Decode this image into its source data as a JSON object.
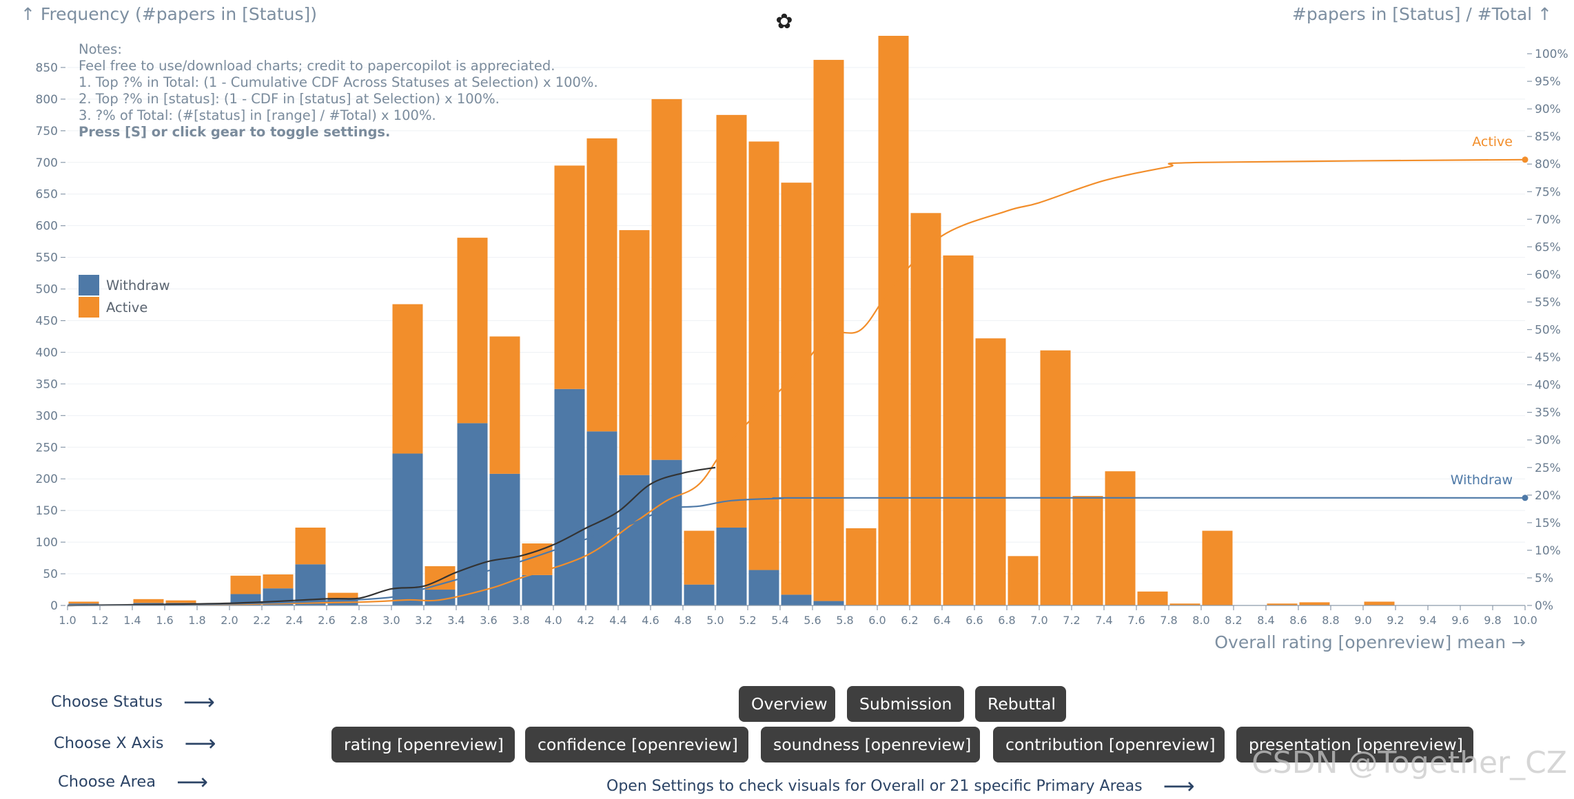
{
  "header": {
    "left_axis_title": "↑ Frequency (#papers in [Status])",
    "right_axis_title": "#papers in [Status] / #Total ↑",
    "x_axis_title": "Overall rating [openreview] mean →",
    "settings_icon": "gear-icon"
  },
  "notes": {
    "title": "Notes:",
    "lines": [
      "Feel free to use/download charts; credit to papercopilot is appreciated.",
      "1. Top ?% in Total: (1 - Cumulative CDF Across Statuses at Selection) x 100%.",
      "2. Top ?% in [status]: (1 - CDF in [status] at Selection) x 100%.",
      "3. ?% of Total: (#[status] in [range] / #Total) x 100%."
    ],
    "hint": "Press [S] or click gear to toggle settings."
  },
  "legend": {
    "withdraw": "Withdraw",
    "active": "Active"
  },
  "colors": {
    "withdraw": "#4e79a7",
    "active": "#f28e2b",
    "cdf_total": "#333333",
    "axis": "#8a9aab"
  },
  "controls": {
    "status_label": "Choose Status",
    "xaxis_label": "Choose X Axis",
    "area_label": "Choose Area",
    "status_buttons": [
      "Overview",
      "Submission",
      "Rebuttal"
    ],
    "xaxis_buttons": [
      "rating [openreview]",
      "confidence [openreview]",
      "soundness [openreview]",
      "contribution [openreview]",
      "presentation [openreview]"
    ],
    "area_note": "Open Settings to check visuals for Overall or 21 specific Primary Areas"
  },
  "watermark": "CSDN @Together_CZ",
  "chart_data": {
    "type": "bar",
    "stacked": true,
    "x_label": "Overall rating [openreview] mean",
    "y_label": "Frequency (#papers in [Status])",
    "y2_label": "#papers in [Status] / #Total",
    "xlim": [
      1.0,
      10.0
    ],
    "ylim": [
      0,
      900
    ],
    "y2lim": [
      0,
      100
    ],
    "x_ticks": [
      "1.0",
      "1.2",
      "1.4",
      "1.6",
      "1.8",
      "2.0",
      "2.2",
      "2.4",
      "2.6",
      "2.8",
      "3.0",
      "3.2",
      "3.4",
      "3.6",
      "3.8",
      "4.0",
      "4.2",
      "4.4",
      "4.6",
      "4.8",
      "5.0",
      "5.2",
      "5.4",
      "5.6",
      "5.8",
      "6.0",
      "6.2",
      "6.4",
      "6.6",
      "6.8",
      "7.0",
      "7.2",
      "7.4",
      "7.6",
      "7.8",
      "8.0",
      "8.2",
      "8.4",
      "8.6",
      "8.8",
      "9.0",
      "9.2",
      "9.4",
      "9.6",
      "9.8",
      "10.0"
    ],
    "y_ticks": [
      0,
      50,
      100,
      150,
      200,
      250,
      300,
      350,
      400,
      450,
      500,
      550,
      600,
      650,
      700,
      750,
      800,
      850
    ],
    "y2_ticks": [
      "0%",
      "5%",
      "10%",
      "15%",
      "20%",
      "25%",
      "30%",
      "35%",
      "40%",
      "45%",
      "50%",
      "55%",
      "60%",
      "65%",
      "70%",
      "75%",
      "80%",
      "85%",
      "90%",
      "95%",
      "100%"
    ],
    "bin_starts": [
      1.0,
      1.4,
      1.6,
      2.0,
      2.2,
      2.4,
      2.6,
      3.0,
      3.2,
      3.4,
      3.6,
      3.8,
      4.0,
      4.2,
      4.4,
      4.6,
      4.8,
      5.0,
      5.2,
      5.4,
      5.6,
      5.8,
      6.0,
      6.2,
      6.4,
      6.6,
      6.8,
      7.0,
      7.2,
      7.4,
      7.6,
      7.8,
      8.0,
      8.4,
      8.6,
      9.0
    ],
    "series": [
      {
        "name": "Withdraw",
        "values": [
          3,
          4,
          4,
          18,
          27,
          65,
          12,
          240,
          25,
          288,
          208,
          48,
          342,
          275,
          206,
          230,
          33,
          123,
          56,
          17,
          7,
          0,
          0,
          0,
          0,
          0,
          0,
          0,
          0,
          0,
          0,
          0,
          0,
          0,
          0,
          0
        ]
      },
      {
        "name": "Active",
        "values": [
          3,
          6,
          4,
          29,
          22,
          58,
          8,
          236,
          37,
          293,
          217,
          50,
          353,
          463,
          387,
          570,
          85,
          652,
          677,
          651,
          855,
          122,
          900,
          620,
          553,
          422,
          78,
          403,
          173,
          212,
          22,
          3,
          118,
          3,
          5,
          6
        ]
      }
    ],
    "cdf_lines": [
      {
        "name": "Active",
        "label_value": "80%",
        "x": [
          1.0,
          2.0,
          2.8,
          3.1,
          3.3,
          3.6,
          3.8,
          4.2,
          4.5,
          4.7,
          4.9,
          5.1,
          5.5,
          5.7,
          5.9,
          6.1,
          6.4,
          6.8,
          7.0,
          7.4,
          7.8,
          8.0,
          10.0
        ],
        "y": [
          0,
          0.2,
          0.6,
          1,
          1,
          3,
          5,
          9,
          15,
          19,
          22,
          30,
          42,
          49,
          50,
          58,
          67,
          71.5,
          73,
          77,
          79.5,
          80.3,
          80.8
        ]
      },
      {
        "name": "Withdraw",
        "label_value": "20%",
        "x": [
          1.0,
          2.0,
          2.6,
          3.0,
          3.2,
          3.5,
          3.8,
          4.2,
          4.5,
          4.7,
          4.9,
          5.1,
          5.4,
          5.8,
          10.0
        ],
        "y": [
          0,
          0.3,
          0.8,
          1.5,
          3,
          5.5,
          8,
          12,
          15,
          17.5,
          18,
          19,
          19.4,
          19.5,
          19.5
        ]
      },
      {
        "name": "Total",
        "label_value": "",
        "x": [
          1.0,
          2.0,
          2.6,
          2.8,
          3.0,
          3.2,
          3.4,
          3.6,
          3.8,
          4.0,
          4.2,
          4.4,
          4.6,
          4.8,
          5.0
        ],
        "y": [
          0,
          0.4,
          1.2,
          1.3,
          3,
          3.5,
          6,
          8,
          9,
          11,
          14,
          17,
          22,
          24,
          25
        ]
      }
    ]
  }
}
